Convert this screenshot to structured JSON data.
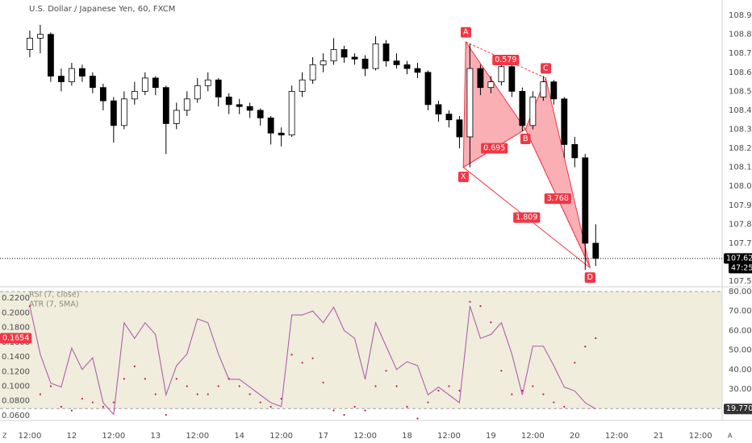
{
  "chart_data": {
    "type": "candlestick",
    "title": "U.S. Dollar / Japanese Yen, 60, FXCM",
    "x": [
      0,
      3,
      6,
      9,
      12,
      15,
      18,
      21,
      24,
      27,
      30,
      33,
      36,
      39,
      42,
      45,
      48,
      51,
      54,
      57,
      60,
      63,
      66,
      69,
      72,
      75,
      78,
      81,
      84,
      87,
      90,
      93,
      96,
      99,
      102,
      105,
      108,
      111,
      114,
      117,
      120,
      123,
      126,
      129,
      132,
      135,
      138,
      141,
      144,
      147,
      150,
      153,
      156,
      159,
      162
    ],
    "ohlc": [
      [
        108.72,
        108.82,
        108.68,
        108.78
      ],
      [
        108.78,
        108.85,
        108.7,
        108.8
      ],
      [
        108.8,
        108.81,
        108.55,
        108.58
      ],
      [
        108.58,
        108.62,
        108.5,
        108.55
      ],
      [
        108.55,
        108.65,
        108.53,
        108.62
      ],
      [
        108.62,
        108.64,
        108.55,
        108.58
      ],
      [
        108.58,
        108.6,
        108.49,
        108.52
      ],
      [
        108.52,
        108.54,
        108.4,
        108.45
      ],
      [
        108.45,
        108.47,
        108.23,
        108.32
      ],
      [
        108.32,
        108.5,
        108.3,
        108.46
      ],
      [
        108.46,
        108.55,
        108.43,
        108.5
      ],
      [
        108.5,
        108.6,
        108.48,
        108.57
      ],
      [
        108.57,
        108.58,
        108.48,
        108.52
      ],
      [
        108.52,
        108.53,
        108.17,
        108.33
      ],
      [
        108.33,
        108.44,
        108.3,
        108.4
      ],
      [
        108.4,
        108.5,
        108.37,
        108.46
      ],
      [
        108.46,
        108.57,
        108.44,
        108.53
      ],
      [
        108.53,
        108.6,
        108.5,
        108.56
      ],
      [
        108.56,
        108.57,
        108.42,
        108.47
      ],
      [
        108.47,
        108.49,
        108.38,
        108.43
      ],
      [
        108.43,
        108.46,
        108.38,
        108.42
      ],
      [
        108.42,
        108.44,
        108.36,
        108.4
      ],
      [
        108.4,
        108.41,
        108.32,
        108.36
      ],
      [
        108.36,
        108.37,
        108.22,
        108.28
      ],
      [
        108.28,
        108.31,
        108.21,
        108.27
      ],
      [
        108.27,
        108.53,
        108.26,
        108.5
      ],
      [
        108.5,
        108.6,
        108.47,
        108.56
      ],
      [
        108.56,
        108.68,
        108.54,
        108.64
      ],
      [
        108.64,
        108.7,
        108.6,
        108.66
      ],
      [
        108.66,
        108.78,
        108.64,
        108.72
      ],
      [
        108.72,
        108.74,
        108.65,
        108.68
      ],
      [
        108.68,
        108.7,
        108.64,
        108.67
      ],
      [
        108.67,
        108.69,
        108.58,
        108.62
      ],
      [
        108.62,
        108.79,
        108.61,
        108.75
      ],
      [
        108.75,
        108.77,
        108.63,
        108.66
      ],
      [
        108.66,
        108.7,
        108.62,
        108.64
      ],
      [
        108.64,
        108.66,
        108.59,
        108.62
      ],
      [
        108.62,
        108.65,
        108.57,
        108.6
      ],
      [
        108.6,
        108.61,
        108.4,
        108.43
      ],
      [
        108.43,
        108.45,
        108.34,
        108.38
      ],
      [
        108.38,
        108.4,
        108.31,
        108.35
      ],
      [
        108.35,
        108.37,
        108.2,
        108.26
      ],
      [
        108.26,
        108.75,
        108.1,
        108.62
      ],
      [
        108.62,
        108.64,
        108.48,
        108.52
      ],
      [
        108.52,
        108.58,
        108.49,
        108.55
      ],
      [
        108.55,
        108.67,
        108.53,
        108.63
      ],
      [
        108.63,
        108.64,
        108.47,
        108.5
      ],
      [
        108.5,
        108.52,
        108.29,
        108.32
      ],
      [
        108.32,
        108.5,
        108.3,
        108.47
      ],
      [
        108.47,
        108.58,
        108.45,
        108.55
      ],
      [
        108.55,
        108.56,
        108.43,
        108.46
      ],
      [
        108.46,
        108.47,
        108.15,
        108.22
      ],
      [
        108.22,
        108.26,
        108.1,
        108.15
      ],
      [
        108.15,
        108.17,
        107.56,
        107.7
      ],
      [
        107.7,
        107.8,
        107.58,
        107.62
      ]
    ],
    "xlim": [
      -1.6,
      198.2
    ],
    "xticks": [
      {
        "value": 0,
        "label": "12:00"
      },
      {
        "value": 12,
        "label": "12"
      },
      {
        "value": 24,
        "label": "12:00"
      },
      {
        "value": 36,
        "label": "13"
      },
      {
        "value": 48,
        "label": "12:00"
      },
      {
        "value": 60,
        "label": "14"
      },
      {
        "value": 72,
        "label": "12:00"
      },
      {
        "value": 84,
        "label": "17"
      },
      {
        "value": 96,
        "label": "12:00"
      },
      {
        "value": 108,
        "label": "18"
      },
      {
        "value": 120,
        "label": "12:00"
      },
      {
        "value": 132,
        "label": "19"
      },
      {
        "value": 144,
        "label": "12:00"
      },
      {
        "value": 156,
        "label": "20"
      },
      {
        "value": 168,
        "label": "12:00"
      },
      {
        "value": 180,
        "label": "21"
      },
      {
        "value": 192,
        "label": "12:00"
      }
    ],
    "ylim": [
      107.475,
      108.981
    ],
    "yticks": [
      {
        "value": 108.9,
        "label": "108.900"
      },
      {
        "value": 108.8,
        "label": "108.800"
      },
      {
        "value": 108.7,
        "label": "108.700"
      },
      {
        "value": 108.6,
        "label": "108.600"
      },
      {
        "value": 108.5,
        "label": "108.500"
      },
      {
        "value": 108.4,
        "label": "108.400"
      },
      {
        "value": 108.3,
        "label": "108.300"
      },
      {
        "value": 108.2,
        "label": "108.200"
      },
      {
        "value": 108.1,
        "label": "108.100"
      },
      {
        "value": 108.0,
        "label": "108.000"
      },
      {
        "value": 107.9,
        "label": "107.900"
      },
      {
        "value": 107.8,
        "label": "107.800"
      },
      {
        "value": 107.7,
        "label": "107.700"
      },
      {
        "value": 107.5,
        "label": "107.500"
      }
    ],
    "last_price": {
      "value": 107.62,
      "label": "107.620"
    },
    "countdown": "47:25",
    "pattern": {
      "color": "#f23645",
      "points": [
        {
          "label": "X",
          "x": 124.1,
          "y": 108.1
        },
        {
          "label": "A",
          "x": 124.8,
          "y": 108.76
        },
        {
          "label": "B",
          "x": 141.9,
          "y": 108.3
        },
        {
          "label": "C",
          "x": 147.7,
          "y": 108.57
        },
        {
          "label": "D",
          "x": 160.4,
          "y": 107.57
        }
      ],
      "ratios": [
        0.579,
        0.695,
        3.768,
        1.809
      ]
    },
    "rsi": {
      "name": "RSI (7, close)",
      "color": "#b05fae",
      "values": [
        72.6,
        47.8,
        33,
        31,
        51,
        40,
        46,
        23,
        17,
        64,
        56,
        64,
        58,
        27,
        42,
        48,
        66,
        64,
        48,
        35,
        35,
        31,
        27,
        23,
        21,
        68,
        68,
        70,
        64,
        72,
        60,
        56,
        35,
        64,
        52,
        40,
        44,
        42,
        27,
        31,
        27,
        23,
        72.6,
        56,
        58,
        64,
        48,
        27,
        52,
        52,
        42,
        31,
        29,
        23,
        19.7705
      ],
      "ylim": [
        13.88,
        80.83
      ],
      "yticks": [
        {
          "value": 80,
          "label": "80.0000"
        },
        {
          "value": 70,
          "label": "70.0000"
        },
        {
          "value": 60,
          "label": "60.0000"
        },
        {
          "value": 50,
          "label": "50.0000"
        },
        {
          "value": 40,
          "label": "40.0000"
        },
        {
          "value": 30,
          "label": "30.0000"
        }
      ],
      "band": [
        20,
        80
      ]
    },
    "atr": {
      "name": "ATR (7, SMA)",
      "color": "#c2185b",
      "values": [
        0.209,
        0.089,
        0.1,
        0.072,
        0.067,
        0.083,
        0.078,
        0.072,
        0.078,
        0.11,
        0.127,
        0.11,
        0.089,
        0.061,
        0.11,
        0.1,
        0.089,
        0.089,
        0.1,
        0.11,
        0.1,
        0.089,
        0.078,
        0.072,
        0.083,
        0.143,
        0.132,
        0.138,
        0.105,
        0.067,
        0.061,
        0.072,
        0.067,
        0.1,
        0.121,
        0.1,
        0.072,
        0.056,
        0.078,
        0.094,
        0.1,
        0.094,
        0.215,
        0.209,
        0.187,
        0.121,
        0.089,
        0.094,
        0.1,
        0.089,
        0.078,
        0.072,
        0.132,
        0.154,
        0.1654
      ],
      "ylim": [
        0.0534,
        0.231
      ],
      "yticks": [
        {
          "value": 0.22,
          "label": "0.2200"
        },
        {
          "value": 0.2,
          "label": "0.2000"
        },
        {
          "value": 0.18,
          "label": "0.1800"
        },
        {
          "value": 0.16,
          "label": "0.1600"
        },
        {
          "value": 0.14,
          "label": "0.1400"
        },
        {
          "value": 0.12,
          "label": "0.1200"
        },
        {
          "value": 0.1,
          "label": "0.1000"
        },
        {
          "value": 0.08,
          "label": "0.0800"
        },
        {
          "value": 0.06,
          "label": "0.0600"
        }
      ]
    },
    "corner_labels": [
      "Z",
      "A"
    ]
  }
}
